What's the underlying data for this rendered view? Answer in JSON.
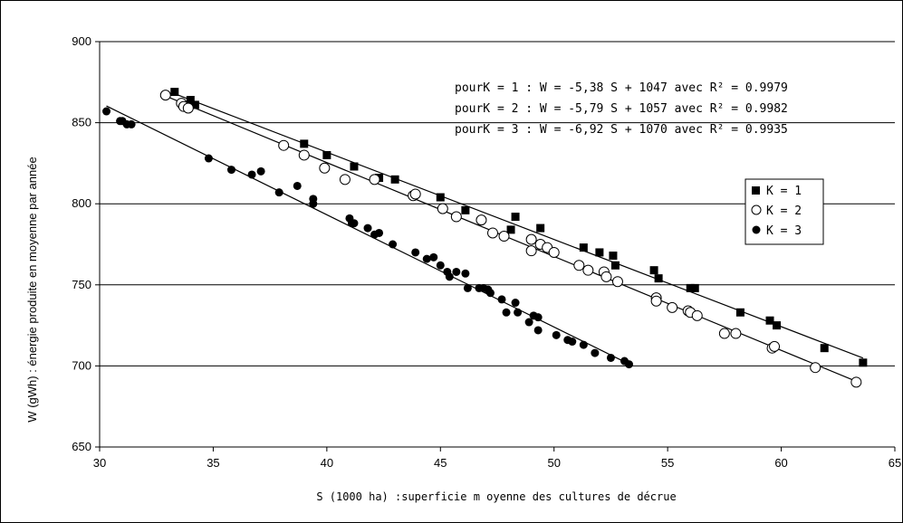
{
  "chart_data": {
    "type": "scatter",
    "title": "",
    "xlabel": "S (1000 ha) :superficie m oyenne des cultures de décrue",
    "ylabel": "W (gWh) : énergie produite en moyenne par année",
    "xlim": [
      30,
      65
    ],
    "ylim": [
      650,
      900
    ],
    "xticks": [
      "30",
      "35",
      "40",
      "45",
      "50",
      "55",
      "60",
      "65"
    ],
    "yticks": [
      "650",
      "700",
      "750",
      "800",
      "850",
      "900"
    ],
    "grid": "horizontal",
    "legend_position": "right",
    "equations": [
      "pourK = 1  : W  = -5,38 S + 1047  avec R² = 0.9979",
      "pourK = 2  : W  = -5,79 S + 1057  avec R² = 0.9982",
      "pourK = 3  : W  = -6,92 S + 1070  avec R² = 0.9935"
    ],
    "series": [
      {
        "name": "K = 1",
        "marker": "filled-square",
        "color": "#000000",
        "trendline": {
          "slope": -5.38,
          "intercept": 1047,
          "x_range": [
            33.3,
            63.6
          ]
        },
        "points": [
          [
            33.3,
            869
          ],
          [
            34.0,
            864
          ],
          [
            34.2,
            861
          ],
          [
            39.0,
            837
          ],
          [
            40.0,
            830
          ],
          [
            41.2,
            823
          ],
          [
            42.3,
            816
          ],
          [
            43.0,
            815
          ],
          [
            45.0,
            804
          ],
          [
            46.1,
            796
          ],
          [
            48.1,
            784
          ],
          [
            48.3,
            792
          ],
          [
            49.4,
            785
          ],
          [
            51.3,
            773
          ],
          [
            52.0,
            770
          ],
          [
            52.6,
            768
          ],
          [
            52.7,
            762
          ],
          [
            54.4,
            759
          ],
          [
            54.6,
            754
          ],
          [
            56.0,
            748
          ],
          [
            56.2,
            748
          ],
          [
            58.2,
            733
          ],
          [
            59.5,
            728
          ],
          [
            59.8,
            725
          ],
          [
            61.9,
            711
          ],
          [
            63.6,
            702
          ]
        ]
      },
      {
        "name": "K = 2",
        "marker": "open-circle",
        "color": "#000000",
        "trendline": {
          "slope": -5.79,
          "intercept": 1057,
          "x_range": [
            32.9,
            63.3
          ]
        },
        "points": [
          [
            32.9,
            867
          ],
          [
            33.6,
            862
          ],
          [
            33.7,
            860
          ],
          [
            33.9,
            859
          ],
          [
            38.1,
            836
          ],
          [
            39.0,
            830
          ],
          [
            39.9,
            822
          ],
          [
            40.8,
            815
          ],
          [
            42.1,
            815
          ],
          [
            43.8,
            805
          ],
          [
            43.9,
            806
          ],
          [
            45.1,
            797
          ],
          [
            45.7,
            792
          ],
          [
            46.8,
            790
          ],
          [
            47.3,
            782
          ],
          [
            47.8,
            780
          ],
          [
            49.0,
            778
          ],
          [
            49.0,
            771
          ],
          [
            49.4,
            775
          ],
          [
            49.7,
            773
          ],
          [
            50.0,
            770
          ],
          [
            51.1,
            762
          ],
          [
            51.5,
            759
          ],
          [
            52.2,
            758
          ],
          [
            52.3,
            755
          ],
          [
            52.8,
            752
          ],
          [
            54.5,
            742
          ],
          [
            54.5,
            740
          ],
          [
            55.2,
            736
          ],
          [
            55.9,
            734
          ],
          [
            56.0,
            733
          ],
          [
            56.3,
            731
          ],
          [
            57.5,
            720
          ],
          [
            58.0,
            720
          ],
          [
            59.6,
            711
          ],
          [
            59.7,
            712
          ],
          [
            61.5,
            699
          ],
          [
            63.3,
            690
          ]
        ]
      },
      {
        "name": "K = 3",
        "marker": "filled-circle",
        "color": "#000000",
        "trendline": {
          "slope": -6.92,
          "intercept": 1070,
          "x_range": [
            30.3,
            53.4
          ]
        },
        "points": [
          [
            30.3,
            857
          ],
          [
            30.9,
            851
          ],
          [
            31.0,
            851
          ],
          [
            31.2,
            849
          ],
          [
            31.4,
            849
          ],
          [
            34.8,
            828
          ],
          [
            35.8,
            821
          ],
          [
            36.7,
            818
          ],
          [
            37.1,
            820
          ],
          [
            37.9,
            807
          ],
          [
            38.7,
            811
          ],
          [
            39.4,
            803
          ],
          [
            39.4,
            800
          ],
          [
            41.0,
            791
          ],
          [
            41.1,
            788
          ],
          [
            41.2,
            788
          ],
          [
            41.8,
            785
          ],
          [
            42.1,
            781
          ],
          [
            42.3,
            782
          ],
          [
            42.9,
            775
          ],
          [
            43.9,
            770
          ],
          [
            44.4,
            766
          ],
          [
            44.7,
            767
          ],
          [
            45.0,
            762
          ],
          [
            45.3,
            758
          ],
          [
            45.4,
            755
          ],
          [
            45.7,
            758
          ],
          [
            46.1,
            757
          ],
          [
            46.2,
            748
          ],
          [
            46.7,
            748
          ],
          [
            46.9,
            748
          ],
          [
            47.1,
            747
          ],
          [
            47.2,
            745
          ],
          [
            47.7,
            741
          ],
          [
            47.9,
            733
          ],
          [
            48.3,
            739
          ],
          [
            48.4,
            733
          ],
          [
            48.9,
            727
          ],
          [
            49.1,
            731
          ],
          [
            49.3,
            730
          ],
          [
            49.3,
            722
          ],
          [
            50.1,
            719
          ],
          [
            50.6,
            716
          ],
          [
            50.8,
            715
          ],
          [
            51.3,
            713
          ],
          [
            51.8,
            708
          ],
          [
            52.5,
            705
          ],
          [
            53.1,
            703
          ],
          [
            53.3,
            701
          ]
        ]
      }
    ]
  }
}
